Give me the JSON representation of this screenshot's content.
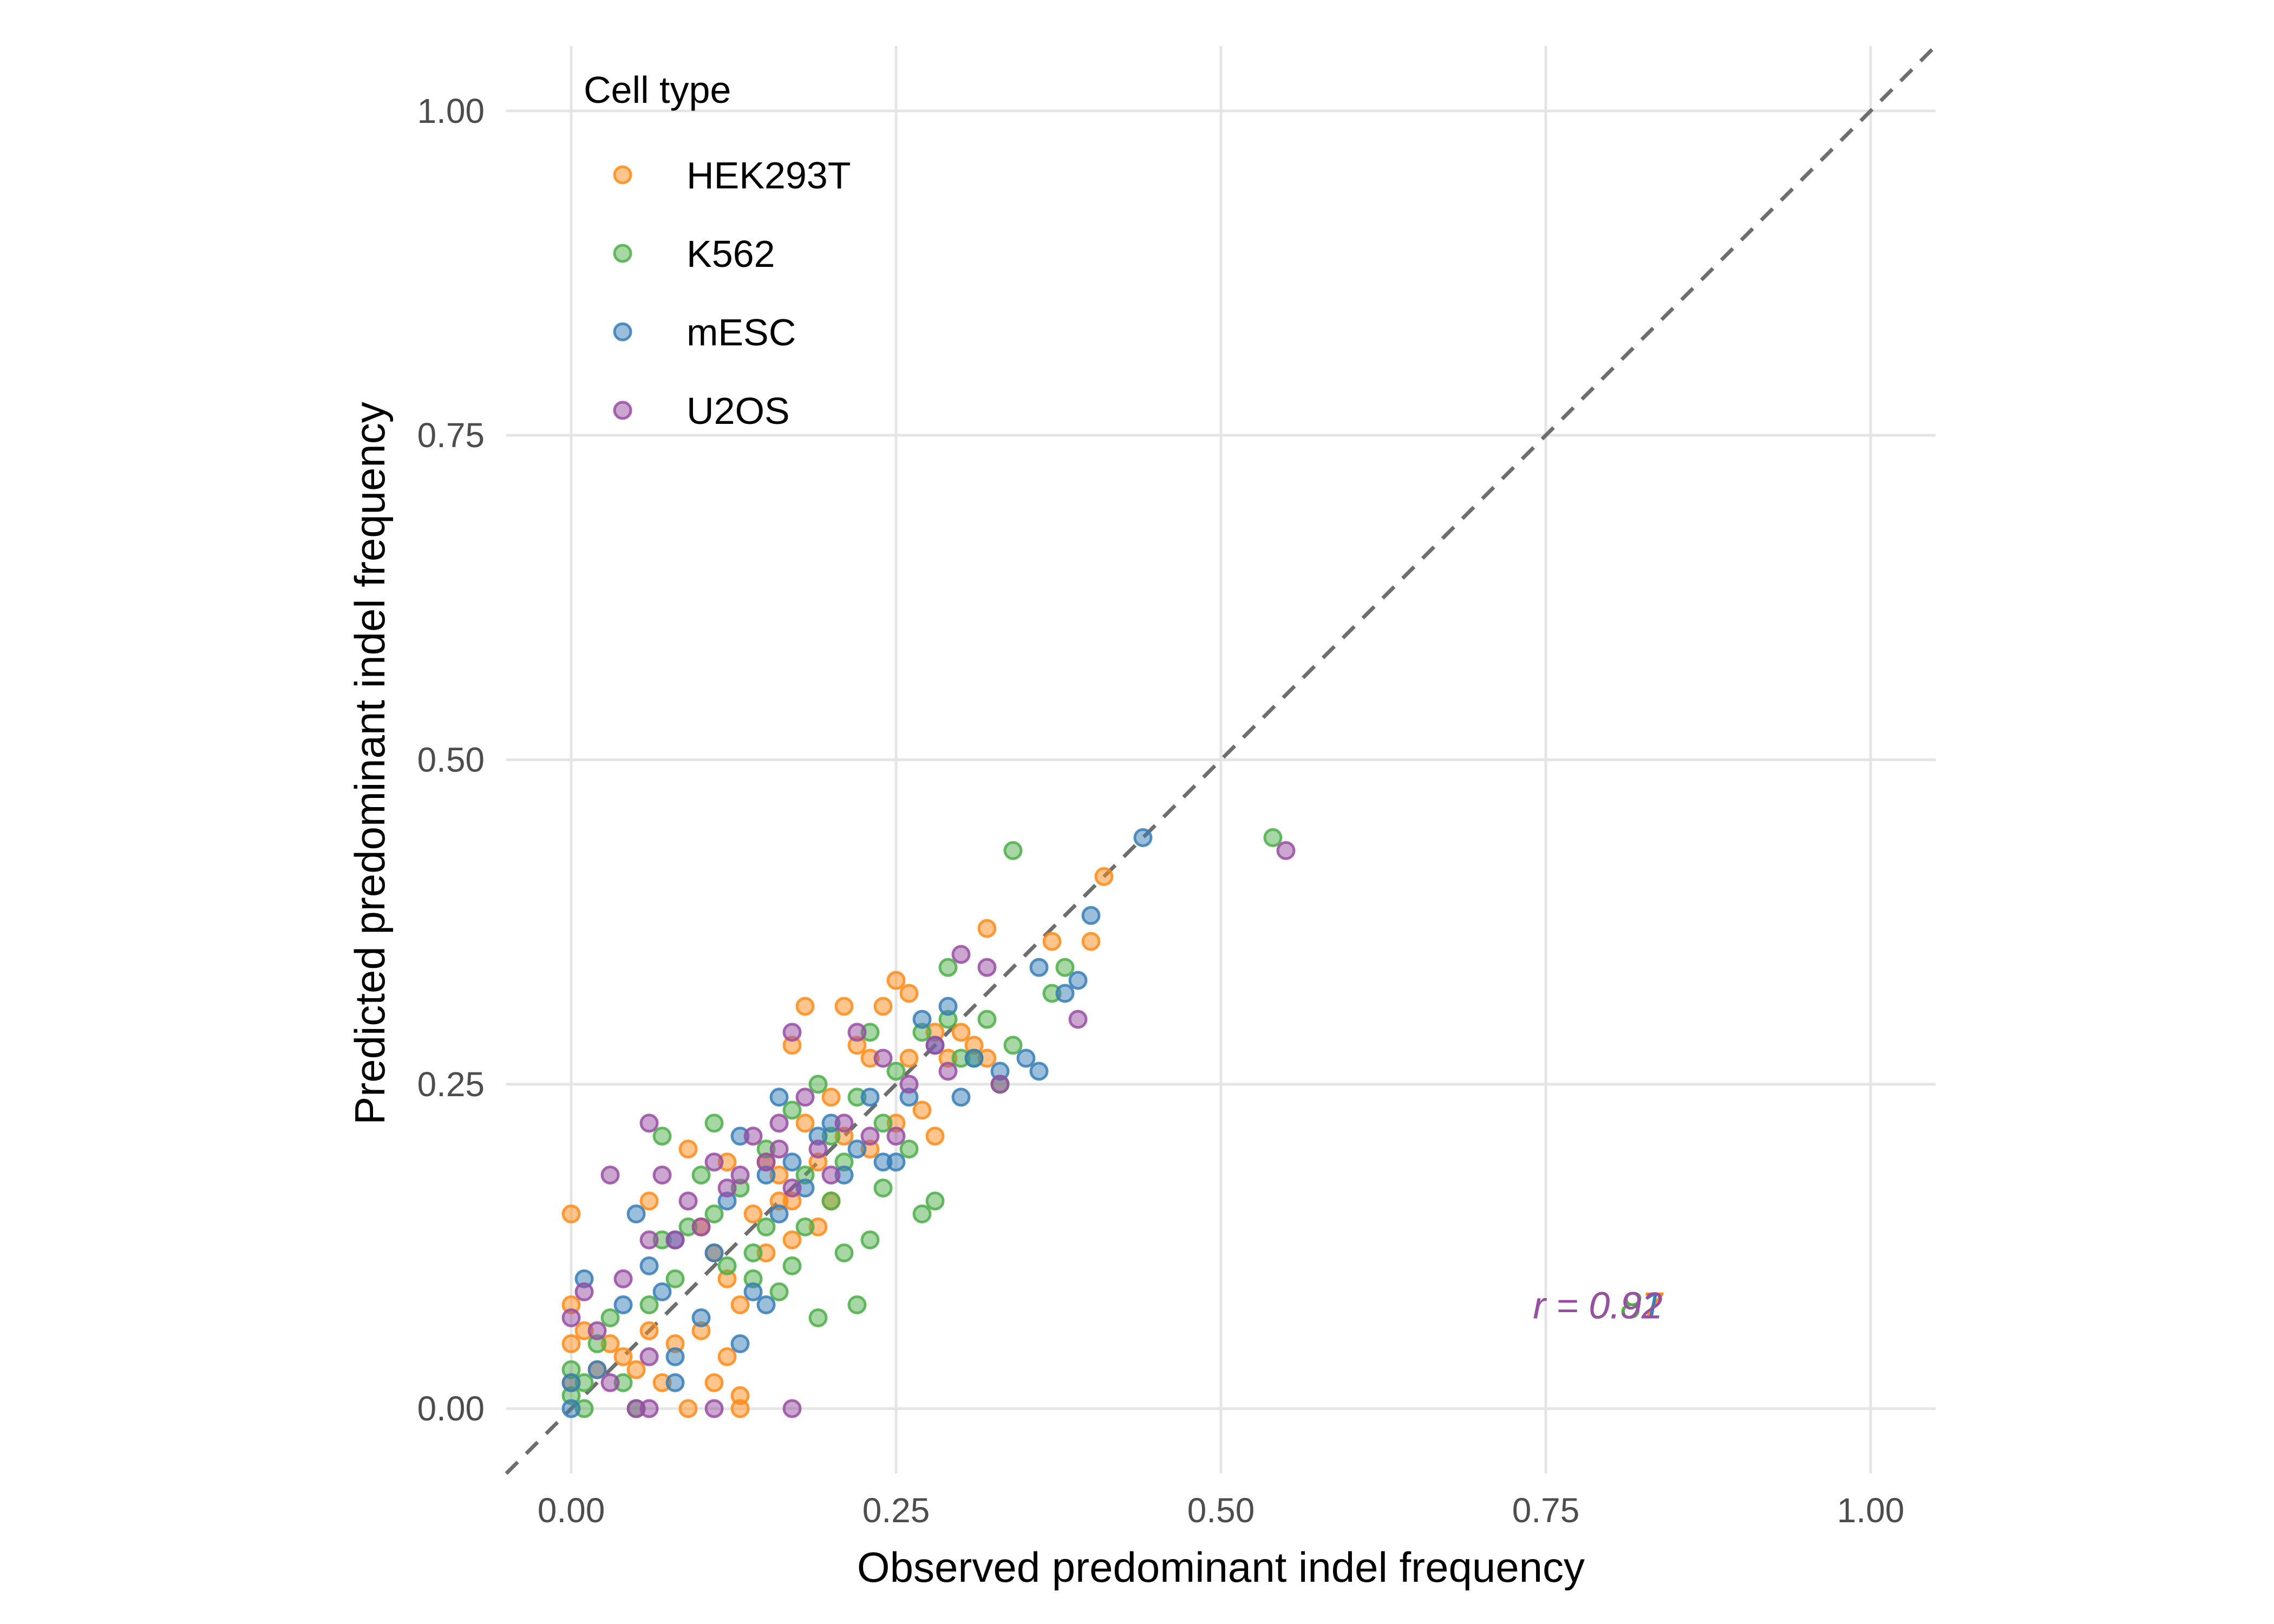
{
  "chart_data": {
    "type": "scatter",
    "title": "",
    "xlabel": "Observed predominant indel frequency",
    "ylabel": "Predicted predominant indel frequency",
    "xlim": [
      -0.05,
      1.05
    ],
    "ylim": [
      -0.05,
      1.05
    ],
    "x_ticks": [
      0,
      0.25,
      0.5,
      0.75,
      1.0
    ],
    "x_tick_labels": [
      "0.00",
      "0.25",
      "0.50",
      "0.75",
      "1.00"
    ],
    "y_ticks": [
      0,
      0.25,
      0.5,
      0.75,
      1.0
    ],
    "y_tick_labels": [
      "0.00",
      "0.25",
      "0.50",
      "0.75",
      "1.00"
    ],
    "identity_line": true,
    "legend": {
      "title": "Cell type",
      "position": "top-left"
    },
    "annotation": {
      "text_prefix": "r = ",
      "x": 0.79,
      "y": 0.08
    },
    "series": [
      {
        "name": "HEK293T",
        "color": "#FF8C1A",
        "r": "0.87",
        "points": [
          [
            0.0,
            0.15
          ],
          [
            0.0,
            0.08
          ],
          [
            0.0,
            0.05
          ],
          [
            0.0,
            0.02
          ],
          [
            0.01,
            0.06
          ],
          [
            0.02,
            0.03
          ],
          [
            0.03,
            0.05
          ],
          [
            0.04,
            0.04
          ],
          [
            0.05,
            0.03
          ],
          [
            0.06,
            0.06
          ],
          [
            0.06,
            0.16
          ],
          [
            0.07,
            0.02
          ],
          [
            0.08,
            0.05
          ],
          [
            0.09,
            0.2
          ],
          [
            0.1,
            0.14
          ],
          [
            0.1,
            0.06
          ],
          [
            0.11,
            0.12
          ],
          [
            0.11,
            0.02
          ],
          [
            0.12,
            0.19
          ],
          [
            0.12,
            0.04
          ],
          [
            0.13,
            0.08
          ],
          [
            0.13,
            0.01
          ],
          [
            0.14,
            0.15
          ],
          [
            0.15,
            0.19
          ],
          [
            0.15,
            0.12
          ],
          [
            0.16,
            0.16
          ],
          [
            0.16,
            0.18
          ],
          [
            0.17,
            0.28
          ],
          [
            0.17,
            0.13
          ],
          [
            0.18,
            0.31
          ],
          [
            0.18,
            0.22
          ],
          [
            0.19,
            0.19
          ],
          [
            0.2,
            0.16
          ],
          [
            0.2,
            0.24
          ],
          [
            0.21,
            0.31
          ],
          [
            0.21,
            0.21
          ],
          [
            0.22,
            0.28
          ],
          [
            0.23,
            0.2
          ],
          [
            0.23,
            0.27
          ],
          [
            0.24,
            0.31
          ],
          [
            0.25,
            0.33
          ],
          [
            0.25,
            0.22
          ],
          [
            0.26,
            0.32
          ],
          [
            0.26,
            0.27
          ],
          [
            0.27,
            0.23
          ],
          [
            0.28,
            0.29
          ],
          [
            0.28,
            0.21
          ],
          [
            0.29,
            0.27
          ],
          [
            0.3,
            0.29
          ],
          [
            0.31,
            0.28
          ],
          [
            0.32,
            0.37
          ],
          [
            0.32,
            0.27
          ],
          [
            0.37,
            0.36
          ],
          [
            0.41,
            0.41
          ],
          [
            0.4,
            0.36
          ],
          [
            0.13,
            0.0
          ],
          [
            0.09,
            0.0
          ],
          [
            0.12,
            0.1
          ],
          [
            0.19,
            0.14
          ],
          [
            0.17,
            0.16
          ]
        ]
      },
      {
        "name": "K562",
        "color": "#4DAF4A",
        "r": "0.81",
        "points": [
          [
            0.0,
            0.03
          ],
          [
            0.0,
            0.01
          ],
          [
            0.01,
            0.02
          ],
          [
            0.01,
            0.0
          ],
          [
            0.02,
            0.05
          ],
          [
            0.03,
            0.07
          ],
          [
            0.04,
            0.02
          ],
          [
            0.05,
            0.0
          ],
          [
            0.06,
            0.08
          ],
          [
            0.07,
            0.13
          ],
          [
            0.07,
            0.21
          ],
          [
            0.08,
            0.1
          ],
          [
            0.09,
            0.14
          ],
          [
            0.1,
            0.18
          ],
          [
            0.11,
            0.15
          ],
          [
            0.11,
            0.22
          ],
          [
            0.12,
            0.11
          ],
          [
            0.13,
            0.17
          ],
          [
            0.14,
            0.12
          ],
          [
            0.15,
            0.14
          ],
          [
            0.15,
            0.2
          ],
          [
            0.16,
            0.09
          ],
          [
            0.17,
            0.23
          ],
          [
            0.18,
            0.18
          ],
          [
            0.18,
            0.14
          ],
          [
            0.19,
            0.25
          ],
          [
            0.2,
            0.21
          ],
          [
            0.2,
            0.16
          ],
          [
            0.21,
            0.19
          ],
          [
            0.21,
            0.12
          ],
          [
            0.22,
            0.24
          ],
          [
            0.22,
            0.08
          ],
          [
            0.23,
            0.29
          ],
          [
            0.23,
            0.13
          ],
          [
            0.24,
            0.22
          ],
          [
            0.25,
            0.26
          ],
          [
            0.26,
            0.2
          ],
          [
            0.27,
            0.15
          ],
          [
            0.27,
            0.29
          ],
          [
            0.28,
            0.16
          ],
          [
            0.29,
            0.3
          ],
          [
            0.29,
            0.34
          ],
          [
            0.3,
            0.27
          ],
          [
            0.31,
            0.27
          ],
          [
            0.32,
            0.3
          ],
          [
            0.33,
            0.25
          ],
          [
            0.34,
            0.28
          ],
          [
            0.34,
            0.43
          ],
          [
            0.37,
            0.32
          ],
          [
            0.38,
            0.34
          ],
          [
            0.54,
            0.44
          ],
          [
            0.19,
            0.07
          ],
          [
            0.14,
            0.1
          ],
          [
            0.17,
            0.11
          ],
          [
            0.24,
            0.17
          ]
        ]
      },
      {
        "name": "mESC",
        "color": "#377EB8",
        "r": "0.91",
        "points": [
          [
            0.0,
            0.0
          ],
          [
            0.0,
            0.02
          ],
          [
            0.01,
            0.1
          ],
          [
            0.02,
            0.03
          ],
          [
            0.04,
            0.08
          ],
          [
            0.05,
            0.15
          ],
          [
            0.06,
            0.11
          ],
          [
            0.07,
            0.09
          ],
          [
            0.08,
            0.13
          ],
          [
            0.08,
            0.04
          ],
          [
            0.1,
            0.07
          ],
          [
            0.11,
            0.12
          ],
          [
            0.12,
            0.16
          ],
          [
            0.13,
            0.21
          ],
          [
            0.13,
            0.05
          ],
          [
            0.14,
            0.09
          ],
          [
            0.15,
            0.18
          ],
          [
            0.16,
            0.15
          ],
          [
            0.17,
            0.19
          ],
          [
            0.18,
            0.17
          ],
          [
            0.19,
            0.21
          ],
          [
            0.2,
            0.22
          ],
          [
            0.21,
            0.18
          ],
          [
            0.22,
            0.2
          ],
          [
            0.23,
            0.24
          ],
          [
            0.24,
            0.19
          ],
          [
            0.25,
            0.19
          ],
          [
            0.26,
            0.24
          ],
          [
            0.27,
            0.3
          ],
          [
            0.28,
            0.28
          ],
          [
            0.29,
            0.31
          ],
          [
            0.3,
            0.24
          ],
          [
            0.31,
            0.27
          ],
          [
            0.33,
            0.26
          ],
          [
            0.35,
            0.27
          ],
          [
            0.36,
            0.26
          ],
          [
            0.36,
            0.34
          ],
          [
            0.38,
            0.32
          ],
          [
            0.4,
            0.38
          ],
          [
            0.39,
            0.33
          ],
          [
            0.44,
            0.44
          ],
          [
            0.15,
            0.08
          ],
          [
            0.08,
            0.02
          ],
          [
            0.16,
            0.24
          ]
        ]
      },
      {
        "name": "U2OS",
        "color": "#984EA3",
        "r": "0.92",
        "points": [
          [
            0.0,
            0.07
          ],
          [
            0.01,
            0.09
          ],
          [
            0.02,
            0.06
          ],
          [
            0.03,
            0.02
          ],
          [
            0.04,
            0.1
          ],
          [
            0.05,
            0.0
          ],
          [
            0.06,
            0.04
          ],
          [
            0.06,
            0.13
          ],
          [
            0.07,
            0.18
          ],
          [
            0.08,
            0.13
          ],
          [
            0.09,
            0.16
          ],
          [
            0.1,
            0.14
          ],
          [
            0.11,
            0.19
          ],
          [
            0.12,
            0.17
          ],
          [
            0.13,
            0.18
          ],
          [
            0.14,
            0.21
          ],
          [
            0.15,
            0.19
          ],
          [
            0.16,
            0.2
          ],
          [
            0.16,
            0.22
          ],
          [
            0.17,
            0.29
          ],
          [
            0.17,
            0.17
          ],
          [
            0.18,
            0.24
          ],
          [
            0.19,
            0.2
          ],
          [
            0.2,
            0.18
          ],
          [
            0.21,
            0.22
          ],
          [
            0.22,
            0.29
          ],
          [
            0.23,
            0.21
          ],
          [
            0.24,
            0.27
          ],
          [
            0.25,
            0.21
          ],
          [
            0.26,
            0.25
          ],
          [
            0.28,
            0.28
          ],
          [
            0.29,
            0.26
          ],
          [
            0.3,
            0.35
          ],
          [
            0.32,
            0.34
          ],
          [
            0.33,
            0.25
          ],
          [
            0.39,
            0.3
          ],
          [
            0.55,
            0.43
          ],
          [
            0.17,
            0.0
          ],
          [
            0.06,
            0.0
          ],
          [
            0.11,
            0.0
          ],
          [
            0.03,
            0.18
          ],
          [
            0.06,
            0.22
          ]
        ]
      }
    ]
  }
}
